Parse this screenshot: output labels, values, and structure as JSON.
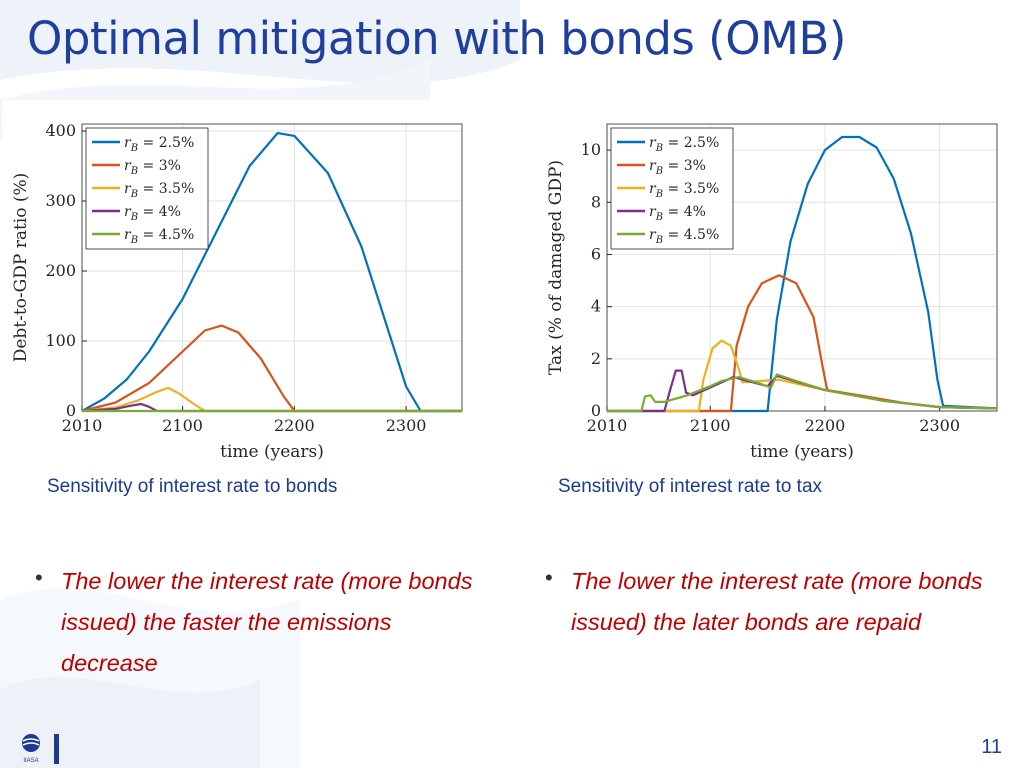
{
  "slide": {
    "title": "Optimal mitigation with bonds (OMB)",
    "page_number": "11",
    "logo_text": "IIASA"
  },
  "captions": {
    "left": "Sensitivity of interest rate to bonds",
    "right": "Sensitivity of interest rate to tax"
  },
  "bullets": [
    {
      "text": "The lower the interest rate (more bonds issued) the faster the emissions decrease"
    },
    {
      "text": "The lower the interest rate (more bonds issued) the later bonds are repaid"
    }
  ],
  "colors": {
    "title": "#1f3f9f",
    "caption": "#1c3a8f",
    "bullet": "#c00000",
    "series": [
      "#0072bd",
      "#d95319",
      "#edb120",
      "#7e2f8e",
      "#77ac30"
    ]
  },
  "chart_data": [
    {
      "type": "line",
      "xlabel": "time (years)",
      "ylabel": "Debt-to-GDP ratio (%)",
      "xlim": [
        2010,
        2350
      ],
      "ylim": [
        0,
        410
      ],
      "xticks": [
        2010,
        2100,
        2200,
        2300
      ],
      "yticks": [
        0,
        100,
        200,
        300,
        400
      ],
      "grid": true,
      "legend_position": "top-left",
      "series": [
        {
          "name": "r_B = 2.5%",
          "legend_sub": "B",
          "legend_value": "2.5%",
          "points": [
            [
              2010,
              0
            ],
            [
              2030,
              18
            ],
            [
              2050,
              45
            ],
            [
              2070,
              85
            ],
            [
              2100,
              160
            ],
            [
              2130,
              255
            ],
            [
              2160,
              350
            ],
            [
              2185,
              397
            ],
            [
              2200,
              393
            ],
            [
              2230,
              340
            ],
            [
              2260,
              235
            ],
            [
              2280,
              135
            ],
            [
              2300,
              35
            ],
            [
              2313,
              0
            ],
            [
              2350,
              0
            ]
          ]
        },
        {
          "name": "r_B = 3%",
          "legend_sub": "B",
          "legend_value": "3%",
          "points": [
            [
              2010,
              0
            ],
            [
              2040,
              12
            ],
            [
              2070,
              40
            ],
            [
              2100,
              85
            ],
            [
              2120,
              115
            ],
            [
              2135,
              122
            ],
            [
              2150,
              112
            ],
            [
              2170,
              75
            ],
            [
              2190,
              22
            ],
            [
              2200,
              0
            ],
            [
              2350,
              0
            ]
          ]
        },
        {
          "name": "r_B = 3.5%",
          "legend_sub": "B",
          "legend_value": "3.5%",
          "points": [
            [
              2010,
              0
            ],
            [
              2040,
              5
            ],
            [
              2060,
              15
            ],
            [
              2078,
              28
            ],
            [
              2087,
              33
            ],
            [
              2097,
              25
            ],
            [
              2110,
              10
            ],
            [
              2120,
              0
            ],
            [
              2350,
              0
            ]
          ]
        },
        {
          "name": "r_B = 4%",
          "legend_sub": "B",
          "legend_value": "4%",
          "points": [
            [
              2010,
              0
            ],
            [
              2040,
              3
            ],
            [
              2055,
              8
            ],
            [
              2063,
              10
            ],
            [
              2070,
              6
            ],
            [
              2077,
              0
            ],
            [
              2350,
              0
            ]
          ]
        },
        {
          "name": "r_B = 4.5%",
          "legend_sub": "B",
          "legend_value": "4.5%",
          "points": [
            [
              2010,
              0
            ],
            [
              2350,
              0
            ]
          ]
        }
      ]
    },
    {
      "type": "line",
      "xlabel": "time (years)",
      "ylabel": "Tax (% of damaged GDP)",
      "xlim": [
        2010,
        2350
      ],
      "ylim": [
        0,
        11
      ],
      "xticks": [
        2010,
        2100,
        2200,
        2300
      ],
      "yticks": [
        0,
        2,
        4,
        6,
        8,
        10
      ],
      "grid": true,
      "legend_position": "top-left",
      "series": [
        {
          "name": "r_B = 2.5%",
          "legend_sub": "B",
          "legend_value": "2.5%",
          "points": [
            [
              2010,
              0
            ],
            [
              2150,
              0
            ],
            [
              2158,
              3.5
            ],
            [
              2170,
              6.5
            ],
            [
              2185,
              8.7
            ],
            [
              2200,
              10
            ],
            [
              2215,
              10.5
            ],
            [
              2230,
              10.5
            ],
            [
              2245,
              10.1
            ],
            [
              2260,
              8.9
            ],
            [
              2275,
              6.8
            ],
            [
              2290,
              3.8
            ],
            [
              2298,
              1.2
            ],
            [
              2303,
              0.2
            ],
            [
              2350,
              0.1
            ]
          ]
        },
        {
          "name": "r_B = 3%",
          "legend_sub": "B",
          "legend_value": "3%",
          "points": [
            [
              2010,
              0
            ],
            [
              2118,
              0
            ],
            [
              2123,
              2.5
            ],
            [
              2133,
              4
            ],
            [
              2145,
              4.9
            ],
            [
              2160,
              5.2
            ],
            [
              2175,
              4.9
            ],
            [
              2190,
              3.6
            ],
            [
              2198,
              1.7
            ],
            [
              2202,
              0.8
            ],
            [
              2230,
              0.6
            ],
            [
              2270,
              0.3
            ],
            [
              2300,
              0.15
            ],
            [
              2350,
              0.1
            ]
          ]
        },
        {
          "name": "r_B = 3.5%",
          "legend_sub": "B",
          "legend_value": "3.5%",
          "points": [
            [
              2010,
              0
            ],
            [
              2090,
              0
            ],
            [
              2094,
              1.2
            ],
            [
              2102,
              2.4
            ],
            [
              2110,
              2.7
            ],
            [
              2118,
              2.5
            ],
            [
              2125,
              1.6
            ],
            [
              2128,
              1.1
            ],
            [
              2160,
              1.2
            ],
            [
              2200,
              0.8
            ],
            [
              2250,
              0.4
            ],
            [
              2300,
              0.15
            ],
            [
              2350,
              0.1
            ]
          ]
        },
        {
          "name": "r_B = 4%",
          "legend_sub": "B",
          "legend_value": "4%",
          "points": [
            [
              2010,
              0
            ],
            [
              2060,
              0
            ],
            [
              2065,
              0.8
            ],
            [
              2070,
              1.55
            ],
            [
              2075,
              1.55
            ],
            [
              2079,
              0.7
            ],
            [
              2085,
              0.6
            ],
            [
              2100,
              0.9
            ],
            [
              2120,
              1.3
            ],
            [
              2150,
              0.95
            ],
            [
              2158,
              1.35
            ],
            [
              2200,
              0.8
            ],
            [
              2250,
              0.4
            ],
            [
              2300,
              0.15
            ],
            [
              2350,
              0.1
            ]
          ]
        },
        {
          "name": "r_B = 4.5%",
          "legend_sub": "B",
          "legend_value": "4.5%",
          "points": [
            [
              2010,
              0
            ],
            [
              2040,
              0
            ],
            [
              2043,
              0.55
            ],
            [
              2048,
              0.6
            ],
            [
              2052,
              0.35
            ],
            [
              2060,
              0.35
            ],
            [
              2080,
              0.6
            ],
            [
              2100,
              0.95
            ],
            [
              2110,
              1.15
            ],
            [
              2125,
              1.3
            ],
            [
              2140,
              1.1
            ],
            [
              2153,
              0.9
            ],
            [
              2158,
              1.4
            ],
            [
              2175,
              1.15
            ],
            [
              2200,
              0.8
            ],
            [
              2250,
              0.4
            ],
            [
              2300,
              0.15
            ],
            [
              2350,
              0.1
            ]
          ]
        }
      ]
    }
  ]
}
